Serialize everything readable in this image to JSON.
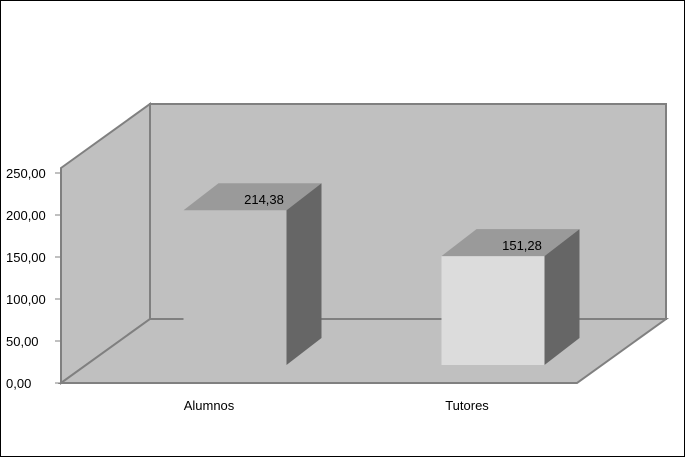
{
  "chart_data": {
    "type": "bar",
    "categories": [
      "Alumnos",
      "Tutores"
    ],
    "values": [
      214.38,
      151.28
    ],
    "data_labels": [
      "214,38",
      "151,28"
    ],
    "y_ticks": [
      "0,00",
      "50,00",
      "100,00",
      "150,00",
      "200,00",
      "250,00"
    ],
    "y_tick_values": [
      0,
      50,
      100,
      150,
      200,
      250
    ],
    "ylim": [
      0,
      250
    ],
    "grid": false,
    "legend": "none",
    "style": "3d-columns",
    "colors": {
      "back_wall": "#c0c0c0",
      "side_wall": "#c0c0c0",
      "floor": "#c0c0c0",
      "wall_edge": "#808080",
      "bar_front": [
        "#c0c0c0",
        "#dcdcdc"
      ],
      "bar_top": "#9a9a9a",
      "bar_side": "#666666"
    }
  }
}
